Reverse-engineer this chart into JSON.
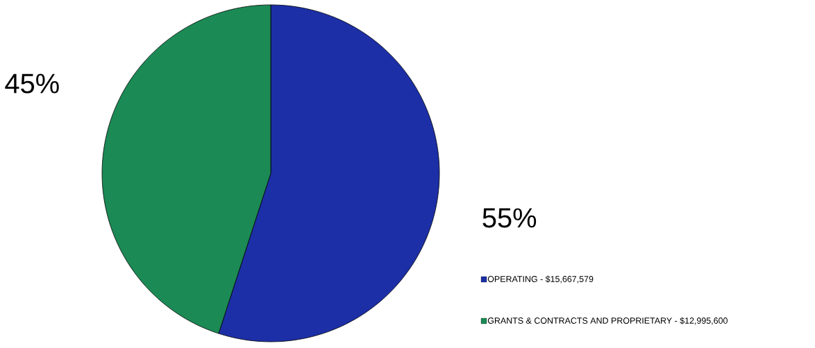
{
  "chart_data": {
    "type": "pie",
    "categories": [
      "OPERATING - $15,667,579",
      "GRANTS & CONTRACTS AND PROPRIETARY - $12,995,600"
    ],
    "values": [
      55,
      45
    ],
    "colors": [
      "#1c2fa6",
      "#1b8a55"
    ],
    "value_labels": [
      "55%",
      "45%"
    ],
    "legend": "bottom right"
  }
}
